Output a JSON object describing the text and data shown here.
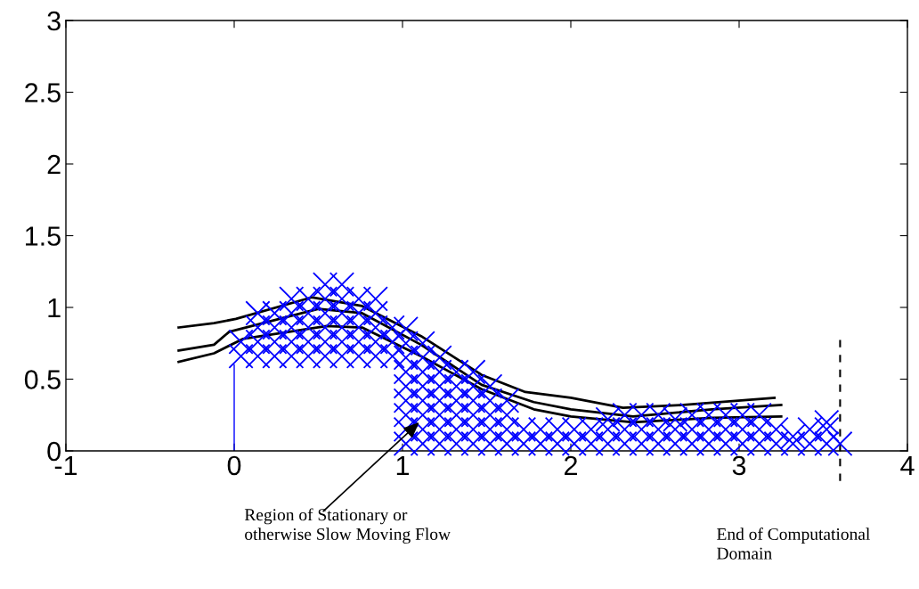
{
  "chart_data": {
    "type": "scatter",
    "xlim": [
      -1,
      4
    ],
    "ylim": [
      0,
      3
    ],
    "xticks": [
      -1,
      0,
      1,
      2,
      3,
      4
    ],
    "yticks": [
      0,
      0.5,
      1,
      1.5,
      2,
      2.5,
      3
    ],
    "grid": false,
    "series": [
      {
        "marker": "cross",
        "color": "#0000ff",
        "x": [
          0.04,
          0.04,
          0.14,
          0.14,
          0.14,
          0.14,
          0.24,
          0.24,
          0.24,
          0.24,
          0.34,
          0.34,
          0.34,
          0.34,
          0.34,
          0.44,
          0.44,
          0.44,
          0.44,
          0.44,
          0.54,
          0.54,
          0.54,
          0.54,
          0.54,
          0.54,
          0.64,
          0.64,
          0.64,
          0.64,
          0.64,
          0.64,
          0.74,
          0.74,
          0.74,
          0.74,
          0.74,
          0.84,
          0.84,
          0.84,
          0.84,
          0.84,
          0.94,
          0.94,
          0.94,
          1.02,
          1.02,
          1.02,
          1.02,
          1.02,
          1.02,
          1.02,
          1.02,
          1.02,
          1.12,
          1.12,
          1.12,
          1.12,
          1.12,
          1.12,
          1.12,
          1.12,
          1.22,
          1.22,
          1.22,
          1.22,
          1.22,
          1.22,
          1.22,
          1.32,
          1.32,
          1.32,
          1.32,
          1.32,
          1.32,
          1.42,
          1.42,
          1.42,
          1.42,
          1.42,
          1.42,
          1.52,
          1.52,
          1.52,
          1.52,
          1.52,
          1.62,
          1.62,
          1.62,
          1.62,
          1.72,
          1.72,
          1.82,
          1.82,
          1.92,
          1.92,
          2.02,
          2.02,
          2.12,
          2.12,
          2.22,
          2.22,
          2.22,
          2.32,
          2.32,
          2.32,
          2.42,
          2.42,
          2.42,
          2.52,
          2.52,
          2.52,
          2.62,
          2.62,
          2.62,
          2.72,
          2.72,
          2.72,
          2.82,
          2.82,
          2.82,
          2.92,
          2.92,
          2.92,
          3.02,
          3.02,
          3.02,
          3.12,
          3.12,
          3.12,
          3.22,
          3.22,
          3.32,
          3.32,
          3.42,
          3.42,
          3.52,
          3.52,
          3.52,
          3.6
        ],
        "values": [
          0.66,
          0.76,
          0.66,
          0.76,
          0.86,
          0.96,
          0.66,
          0.76,
          0.86,
          0.96,
          0.66,
          0.76,
          0.86,
          0.96,
          1.06,
          0.66,
          0.76,
          0.86,
          0.96,
          1.06,
          0.66,
          0.76,
          0.86,
          0.96,
          1.06,
          1.16,
          0.66,
          0.76,
          0.86,
          0.96,
          1.06,
          1.16,
          0.66,
          0.76,
          0.86,
          0.96,
          1.06,
          0.66,
          0.76,
          0.86,
          0.96,
          1.06,
          0.66,
          0.76,
          0.86,
          0.05,
          0.15,
          0.25,
          0.35,
          0.45,
          0.55,
          0.65,
          0.75,
          0.85,
          0.05,
          0.15,
          0.25,
          0.35,
          0.45,
          0.55,
          0.65,
          0.75,
          0.05,
          0.15,
          0.25,
          0.35,
          0.45,
          0.55,
          0.65,
          0.05,
          0.15,
          0.25,
          0.35,
          0.45,
          0.55,
          0.05,
          0.15,
          0.25,
          0.35,
          0.45,
          0.55,
          0.05,
          0.15,
          0.25,
          0.35,
          0.45,
          0.05,
          0.15,
          0.25,
          0.35,
          0.05,
          0.15,
          0.05,
          0.15,
          0.05,
          0.15,
          0.05,
          0.15,
          0.05,
          0.15,
          0.05,
          0.15,
          0.22,
          0.05,
          0.15,
          0.25,
          0.05,
          0.15,
          0.25,
          0.05,
          0.15,
          0.25,
          0.05,
          0.15,
          0.22,
          0.05,
          0.15,
          0.25,
          0.05,
          0.15,
          0.25,
          0.05,
          0.15,
          0.25,
          0.05,
          0.15,
          0.25,
          0.05,
          0.15,
          0.25,
          0.05,
          0.15,
          0.05,
          0.1,
          0.05,
          0.15,
          0.05,
          0.15,
          0.2,
          0.05
        ]
      },
      {
        "type": "line",
        "color": "#0000ff",
        "x": [
          0,
          0
        ],
        "values": [
          0,
          0.6
        ]
      },
      {
        "type": "line",
        "color": "#000000",
        "x": [
          -0.33,
          -0.12,
          0.01,
          0.46,
          0.76,
          1.11,
          1.47,
          1.73,
          2.0,
          2.31,
          2.67,
          3.21
        ],
        "values": [
          0.86,
          0.89,
          0.92,
          1.07,
          1.01,
          0.8,
          0.53,
          0.41,
          0.37,
          0.3,
          0.32,
          0.37
        ]
      },
      {
        "type": "line",
        "color": "#000000",
        "x": [
          -0.33,
          -0.12,
          -0.03,
          0.5,
          0.76,
          1.11,
          1.47,
          1.78,
          2.0,
          2.37,
          2.84,
          3.25
        ],
        "values": [
          0.7,
          0.74,
          0.83,
          0.99,
          0.96,
          0.74,
          0.46,
          0.34,
          0.29,
          0.24,
          0.29,
          0.32
        ]
      },
      {
        "type": "line",
        "color": "#000000",
        "x": [
          -0.33,
          -0.12,
          0.05,
          0.55,
          0.76,
          1.11,
          1.47,
          1.78,
          2.0,
          2.37,
          2.84,
          3.25
        ],
        "values": [
          0.62,
          0.68,
          0.78,
          0.87,
          0.86,
          0.66,
          0.43,
          0.29,
          0.24,
          0.2,
          0.23,
          0.24
        ]
      }
    ],
    "ref_lines": [
      {
        "axis": "x",
        "value": 3.6,
        "label": "End of Computational\nDomain",
        "color": "#000000",
        "line_style": "dashed"
      }
    ],
    "annotations": [
      {
        "text": "Region of Stationary or\notherwise Slow Moving Flow",
        "x": 1.1,
        "y": 0.2
      }
    ]
  }
}
